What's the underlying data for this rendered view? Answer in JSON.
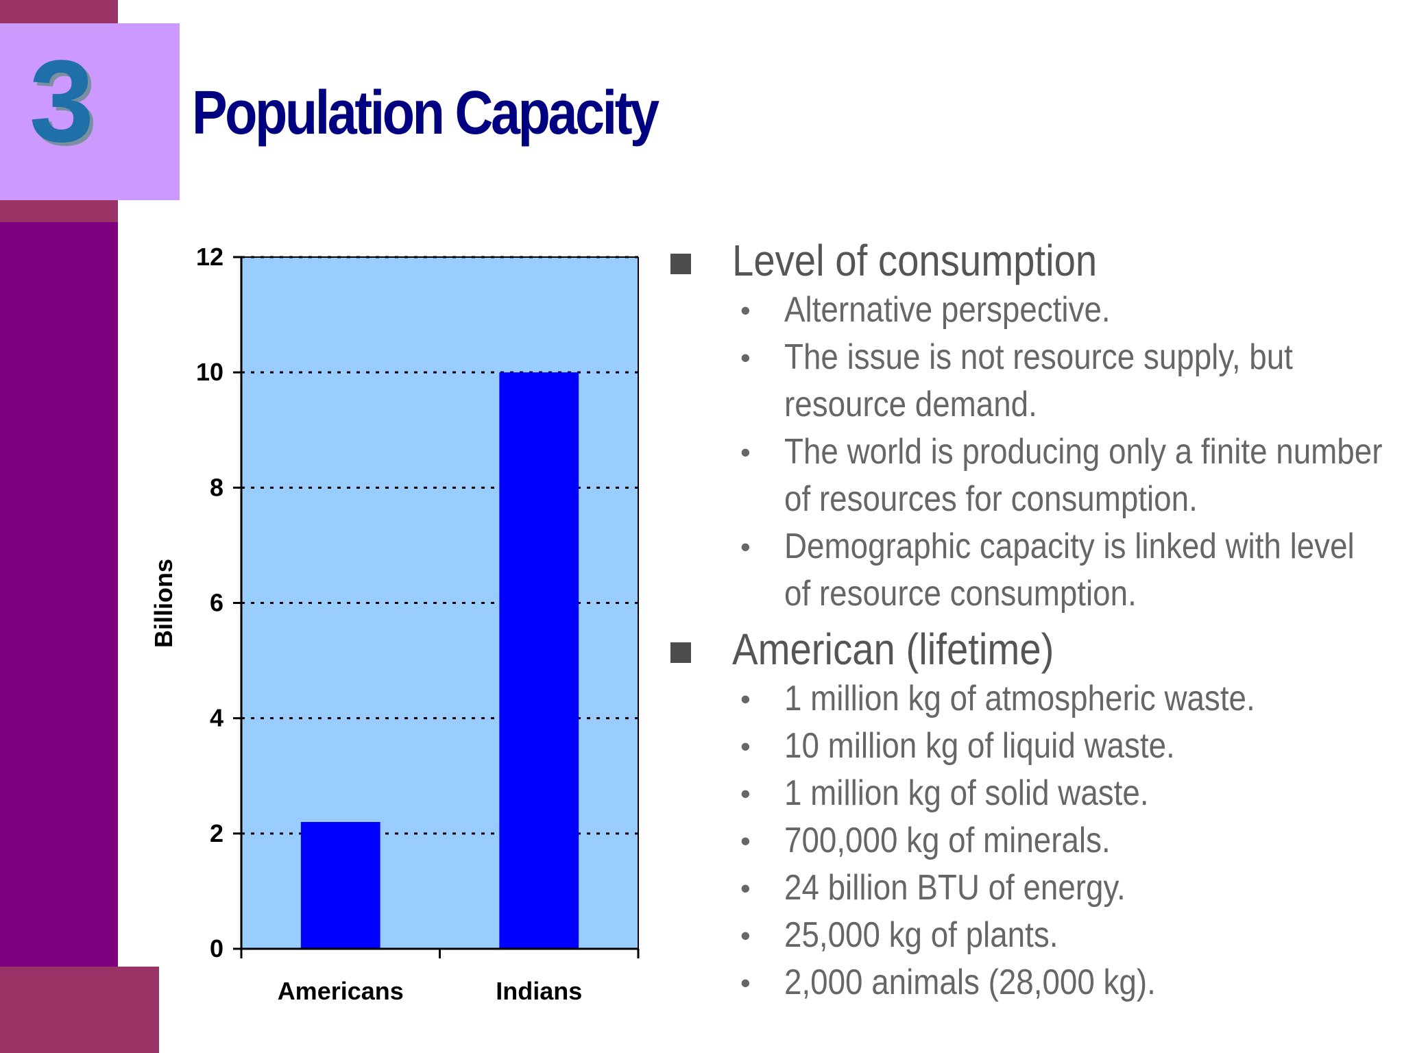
{
  "slide": {
    "number": "3",
    "title": "Population Capacity"
  },
  "chart_data": {
    "type": "bar",
    "categories": [
      "Americans",
      "Indians"
    ],
    "values": [
      2.2,
      10
    ],
    "ylabel": "Billions",
    "ylim": [
      0,
      12
    ],
    "yticks": [
      0,
      2,
      4,
      6,
      8,
      10,
      12
    ],
    "grid": "dotted horizontal",
    "colors": {
      "plot_bg": "#99ccff",
      "bar": "#0000ff"
    }
  },
  "bullets": [
    {
      "heading": "Level of consumption",
      "items": [
        "Alternative perspective.",
        "The issue is not resource supply, but resource demand.",
        "The world is producing only a finite number of resources for consumption.",
        "Demographic capacity is linked with level of resource consumption."
      ]
    },
    {
      "heading": "American (lifetime)",
      "items": [
        "1 million kg of atmospheric waste.",
        "10 million kg of liquid waste.",
        "1 million kg of solid waste.",
        "700,000 kg of minerals.",
        "24 billion BTU of energy.",
        "25,000 kg of plants.",
        "2,000 animals (28,000 kg)."
      ]
    }
  ]
}
